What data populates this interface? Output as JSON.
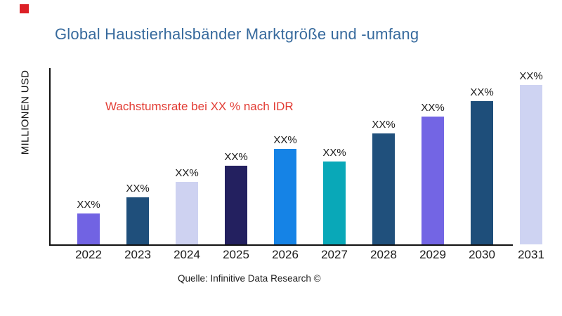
{
  "brand": {
    "mark_color": "#dc2026"
  },
  "chart_data": {
    "type": "bar",
    "title": "Global Haustierhalsbänder Marktgröße und -umfang",
    "title_color": "#376a9d",
    "ylabel": "MILLIONEN USD",
    "xlabel": "",
    "annotation": "Wachstumsrate bei XX % nach IDR",
    "annotation_color": "#e23b33",
    "source": "Quelle: Infinitive Data Research ©",
    "categories": [
      "2022",
      "2023",
      "2024",
      "2025",
      "2026",
      "2027",
      "2028",
      "2029",
      "2030",
      "2031"
    ],
    "values": [
      44,
      67,
      89,
      112,
      135,
      118,
      157,
      181,
      203,
      226
    ],
    "bar_labels": [
      "XX%",
      "XX%",
      "XX%",
      "XX%",
      "XX%",
      "XX%",
      "XX%",
      "XX%",
      "XX%",
      "XX%"
    ],
    "bar_colors": [
      "#7163e3",
      "#1f4f7b",
      "#ced2f1",
      "#23205f",
      "#1583e6",
      "#09a8b8",
      "#20507c",
      "#7365e4",
      "#1e4e7a",
      "#ced3f2"
    ],
    "ylim": [
      0,
      250
    ],
    "grid": false,
    "legend": false
  }
}
